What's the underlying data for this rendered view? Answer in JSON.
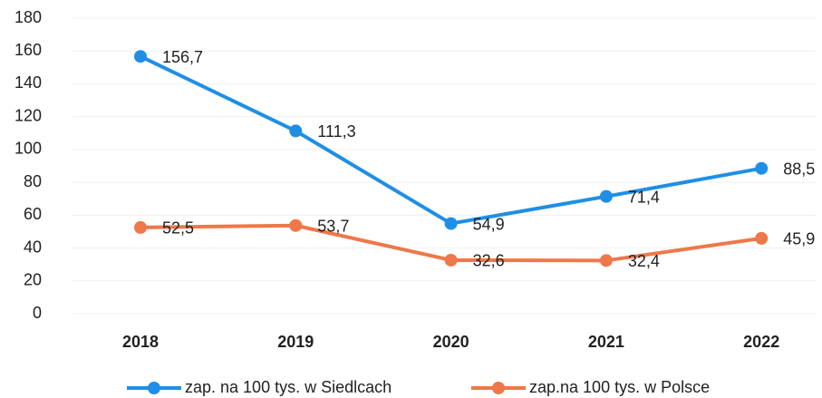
{
  "chart_data": {
    "type": "line",
    "categories": [
      "2018",
      "2019",
      "2020",
      "2021",
      "2022"
    ],
    "series": [
      {
        "name": "zap. na 100 tys. w Siedlcach",
        "color": "#1f8fe5",
        "values": [
          156.7,
          111.3,
          54.9,
          71.4,
          88.5
        ],
        "value_labels": [
          "156,7",
          "111,3",
          "54,9",
          "71,4",
          "88,5"
        ]
      },
      {
        "name": "zap.na 100 tys. w Polsce",
        "color": "#ee7849",
        "values": [
          52.5,
          53.7,
          32.6,
          32.4,
          45.9
        ],
        "value_labels": [
          "52,5",
          "53,7",
          "32,6",
          "32,4",
          "45,9"
        ]
      }
    ],
    "ylim": [
      0,
      180
    ],
    "yticks": [
      0,
      20,
      40,
      60,
      80,
      100,
      120,
      140,
      160,
      180
    ],
    "grid": true,
    "legend": "bottom"
  }
}
